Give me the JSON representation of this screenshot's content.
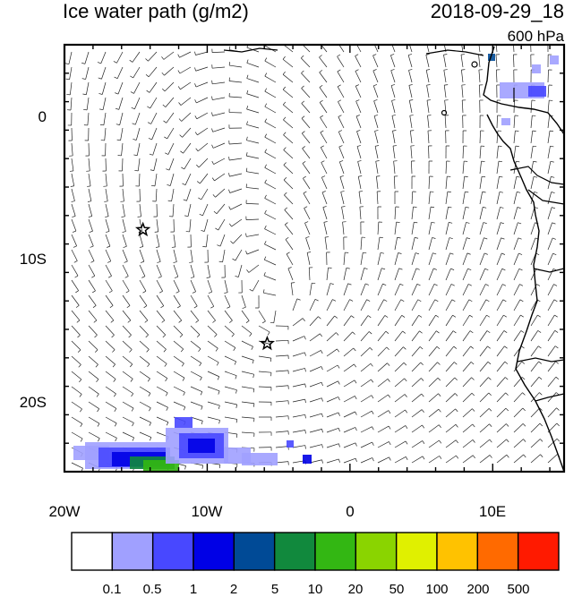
{
  "header": {
    "title": "Ice water path (g/m2)",
    "datetime": "2018-09-29_18",
    "level": "600 hPa"
  },
  "map": {
    "lon_range": [
      -20,
      15
    ],
    "lat_range": [
      -25,
      5
    ],
    "x_ticks": [
      {
        "value": -20,
        "label": "20W"
      },
      {
        "value": -10,
        "label": "10W"
      },
      {
        "value": 0,
        "label": "0"
      },
      {
        "value": 10,
        "label": "10E"
      }
    ],
    "y_ticks": [
      {
        "value": 0,
        "label": "0"
      },
      {
        "value": -10,
        "label": "10S"
      },
      {
        "value": -20,
        "label": "20S"
      }
    ],
    "markers": [
      {
        "lon": -14.5,
        "lat": -8.0,
        "symbol": "star"
      },
      {
        "lon": -5.8,
        "lat": -16.0,
        "symbol": "star"
      }
    ],
    "wind_barbs": "visible",
    "coastline": "visible"
  },
  "colorbar": {
    "colors": [
      "#ffffff",
      "#a0a0ff",
      "#4848ff",
      "#0000e6",
      "#004a96",
      "#11893d",
      "#33b713",
      "#8ad400",
      "#e0f000",
      "#ffc200",
      "#ff6a00",
      "#ff1a00"
    ],
    "labels": [
      "0.1",
      "0.5",
      "1",
      "2",
      "5",
      "10",
      "20",
      "50",
      "100",
      "200",
      "500"
    ]
  }
}
